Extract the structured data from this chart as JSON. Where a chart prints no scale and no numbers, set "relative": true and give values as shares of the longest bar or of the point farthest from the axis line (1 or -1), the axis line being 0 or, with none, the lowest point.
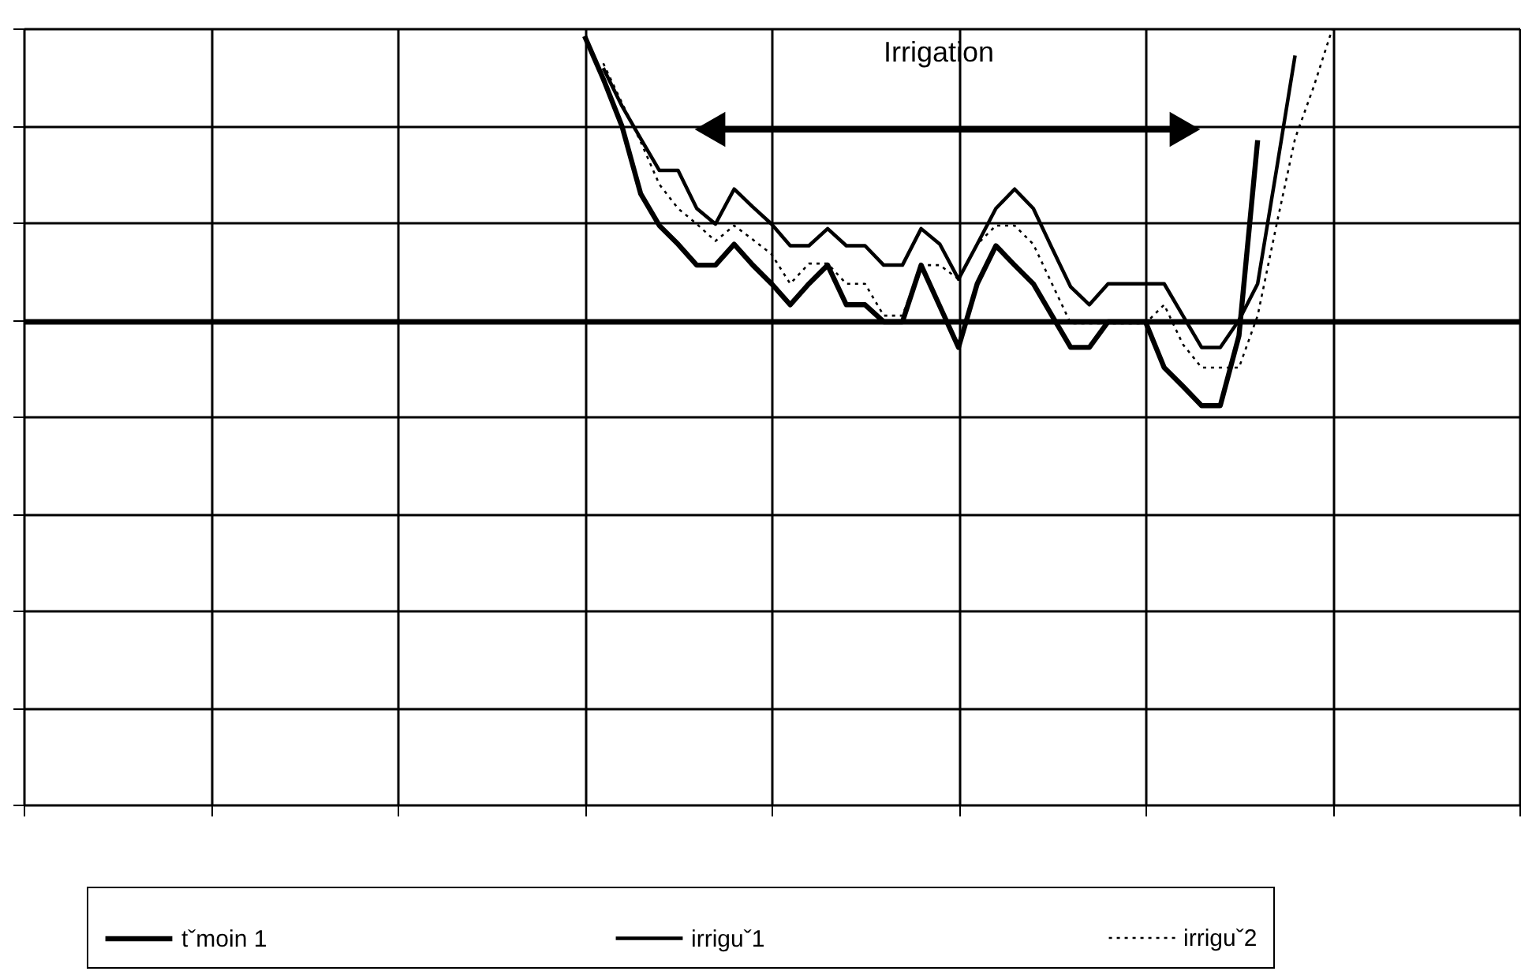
{
  "chart_data": {
    "type": "line",
    "relative": true,
    "tick_labels": false,
    "grid": true,
    "legend": "bottom",
    "marker": "none",
    "categories": [
      null,
      null,
      null,
      null,
      null,
      null,
      null,
      null,
      null,
      null,
      null,
      null,
      null,
      null,
      null,
      null,
      null,
      null,
      null,
      null,
      null,
      null,
      null,
      null,
      null,
      null,
      null,
      null,
      null,
      null,
      null,
      null,
      null,
      null,
      null,
      null,
      null,
      null,
      null,
      null,
      null,
      null,
      null,
      null,
      null,
      null,
      null,
      null,
      null,
      null,
      null,
      null,
      null,
      null,
      null,
      null,
      null,
      null,
      null,
      null,
      null,
      null,
      null,
      null,
      null,
      null,
      null,
      null,
      null,
      null,
      null,
      null,
      null,
      null,
      null,
      null,
      null,
      null,
      null,
      null,
      null
    ],
    "series": [
      {
        "name": "tˇmoin 1",
        "color": "#000000",
        "line_style": "solid",
        "values": [
          null,
          null,
          null,
          null,
          null,
          null,
          null,
          null,
          null,
          null,
          null,
          null,
          null,
          null,
          null,
          null,
          null,
          null,
          null,
          null,
          null,
          null,
          null,
          null,
          null,
          null,
          null,
          null,
          null,
          null,
          0.99,
          0.935,
          0.874,
          0.787,
          0.746,
          0.722,
          0.695,
          0.695,
          0.722,
          0.695,
          0.671,
          0.644,
          0.671,
          0.695,
          0.644,
          0.644,
          0.622,
          0.622,
          0.695,
          0.642,
          0.589,
          0.671,
          0.72,
          0.695,
          0.671,
          0.63,
          0.589,
          0.589,
          0.622,
          0.622,
          0.622,
          0.563,
          0.539,
          0.514,
          0.514,
          0.604,
          0.856,
          null,
          null,
          null,
          null,
          null,
          null,
          null,
          null,
          null,
          null,
          null,
          null,
          null,
          null
        ]
      },
      {
        "name": "irriguˇ1",
        "color": "#000000",
        "line_style": "solid",
        "values": [
          null,
          null,
          null,
          null,
          null,
          null,
          null,
          null,
          null,
          null,
          null,
          null,
          null,
          null,
          null,
          null,
          null,
          null,
          null,
          null,
          null,
          null,
          null,
          null,
          null,
          null,
          null,
          null,
          null,
          null,
          null,
          0.949,
          0.9,
          0.858,
          0.817,
          0.817,
          0.768,
          0.748,
          0.793,
          0.77,
          0.748,
          0.72,
          0.72,
          0.742,
          0.72,
          0.72,
          0.695,
          0.695,
          0.742,
          0.722,
          0.677,
          0.722,
          0.768,
          0.793,
          0.768,
          0.717,
          0.667,
          0.644,
          0.671,
          0.671,
          0.671,
          0.671,
          0.63,
          0.589,
          0.589,
          0.624,
          0.671,
          0.817,
          0.965,
          null,
          null,
          null,
          null,
          null,
          null,
          null,
          null,
          null,
          null,
          null,
          null
        ]
      },
      {
        "name": "irriguˇ2",
        "color": "#000000",
        "line_style": "dotted",
        "values": [
          null,
          null,
          null,
          null,
          null,
          null,
          null,
          null,
          null,
          null,
          null,
          null,
          null,
          null,
          null,
          null,
          null,
          null,
          null,
          null,
          null,
          null,
          null,
          null,
          null,
          null,
          null,
          null,
          null,
          null,
          null,
          0.955,
          0.904,
          0.854,
          0.799,
          0.768,
          0.748,
          0.726,
          0.746,
          0.728,
          0.709,
          0.671,
          0.697,
          0.697,
          0.671,
          0.671,
          0.63,
          0.63,
          0.695,
          0.695,
          0.677,
          0.722,
          0.746,
          0.746,
          0.722,
          0.671,
          0.62,
          0.62,
          0.62,
          0.62,
          0.62,
          0.644,
          0.593,
          0.563,
          0.563,
          0.563,
          0.63,
          0.746,
          0.858,
          0.925,
          1,
          null,
          null,
          null,
          null,
          null,
          null,
          null,
          null,
          null,
          null
        ]
      }
    ],
    "ref_lines": [
      {
        "axis": "y",
        "value": 0.622,
        "color": "#000000",
        "line_style": "solid"
      }
    ],
    "annotations": [
      "Irrigation"
    ]
  }
}
